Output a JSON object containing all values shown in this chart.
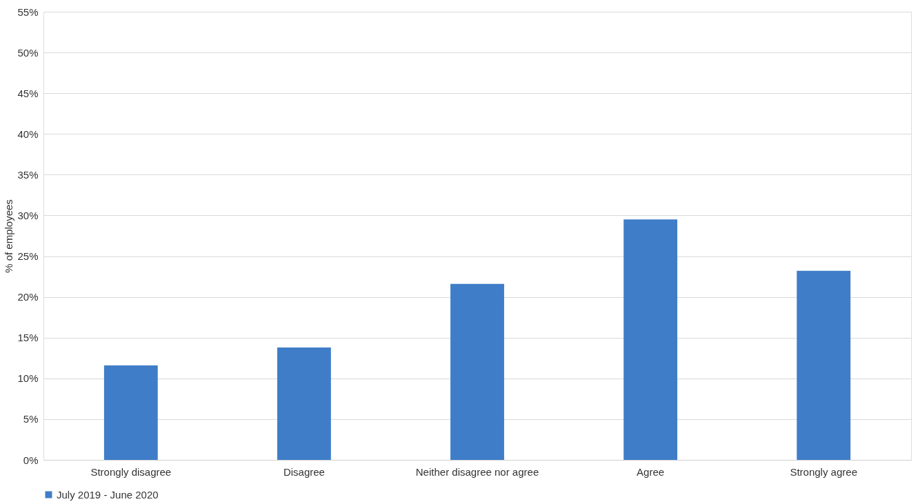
{
  "chart_data": {
    "type": "bar",
    "ylabel": "% of employees",
    "categories": [
      "Strongly disagree",
      "Disagree",
      "Neither disagree nor agree",
      "Agree",
      "Strongly agree"
    ],
    "series": [
      {
        "name": "July 2019 - June 2020",
        "color": "#3f7dc8",
        "values": [
          11.6,
          13.8,
          21.6,
          29.5,
          23.2
        ]
      }
    ],
    "ylim": [
      0,
      55
    ],
    "yticks": [
      {
        "value": 0,
        "label": "0%"
      },
      {
        "value": 5,
        "label": "5%"
      },
      {
        "value": 10,
        "label": "10%"
      },
      {
        "value": 15,
        "label": "15%"
      },
      {
        "value": 20,
        "label": "20%"
      },
      {
        "value": 25,
        "label": "25%"
      },
      {
        "value": 30,
        "label": "30%"
      },
      {
        "value": 35,
        "label": "35%"
      },
      {
        "value": 40,
        "label": "40%"
      },
      {
        "value": 45,
        "label": "45%"
      },
      {
        "value": 50,
        "label": "50%"
      },
      {
        "value": 55,
        "label": "55%"
      }
    ],
    "grid": "y",
    "legend": "bottom"
  }
}
